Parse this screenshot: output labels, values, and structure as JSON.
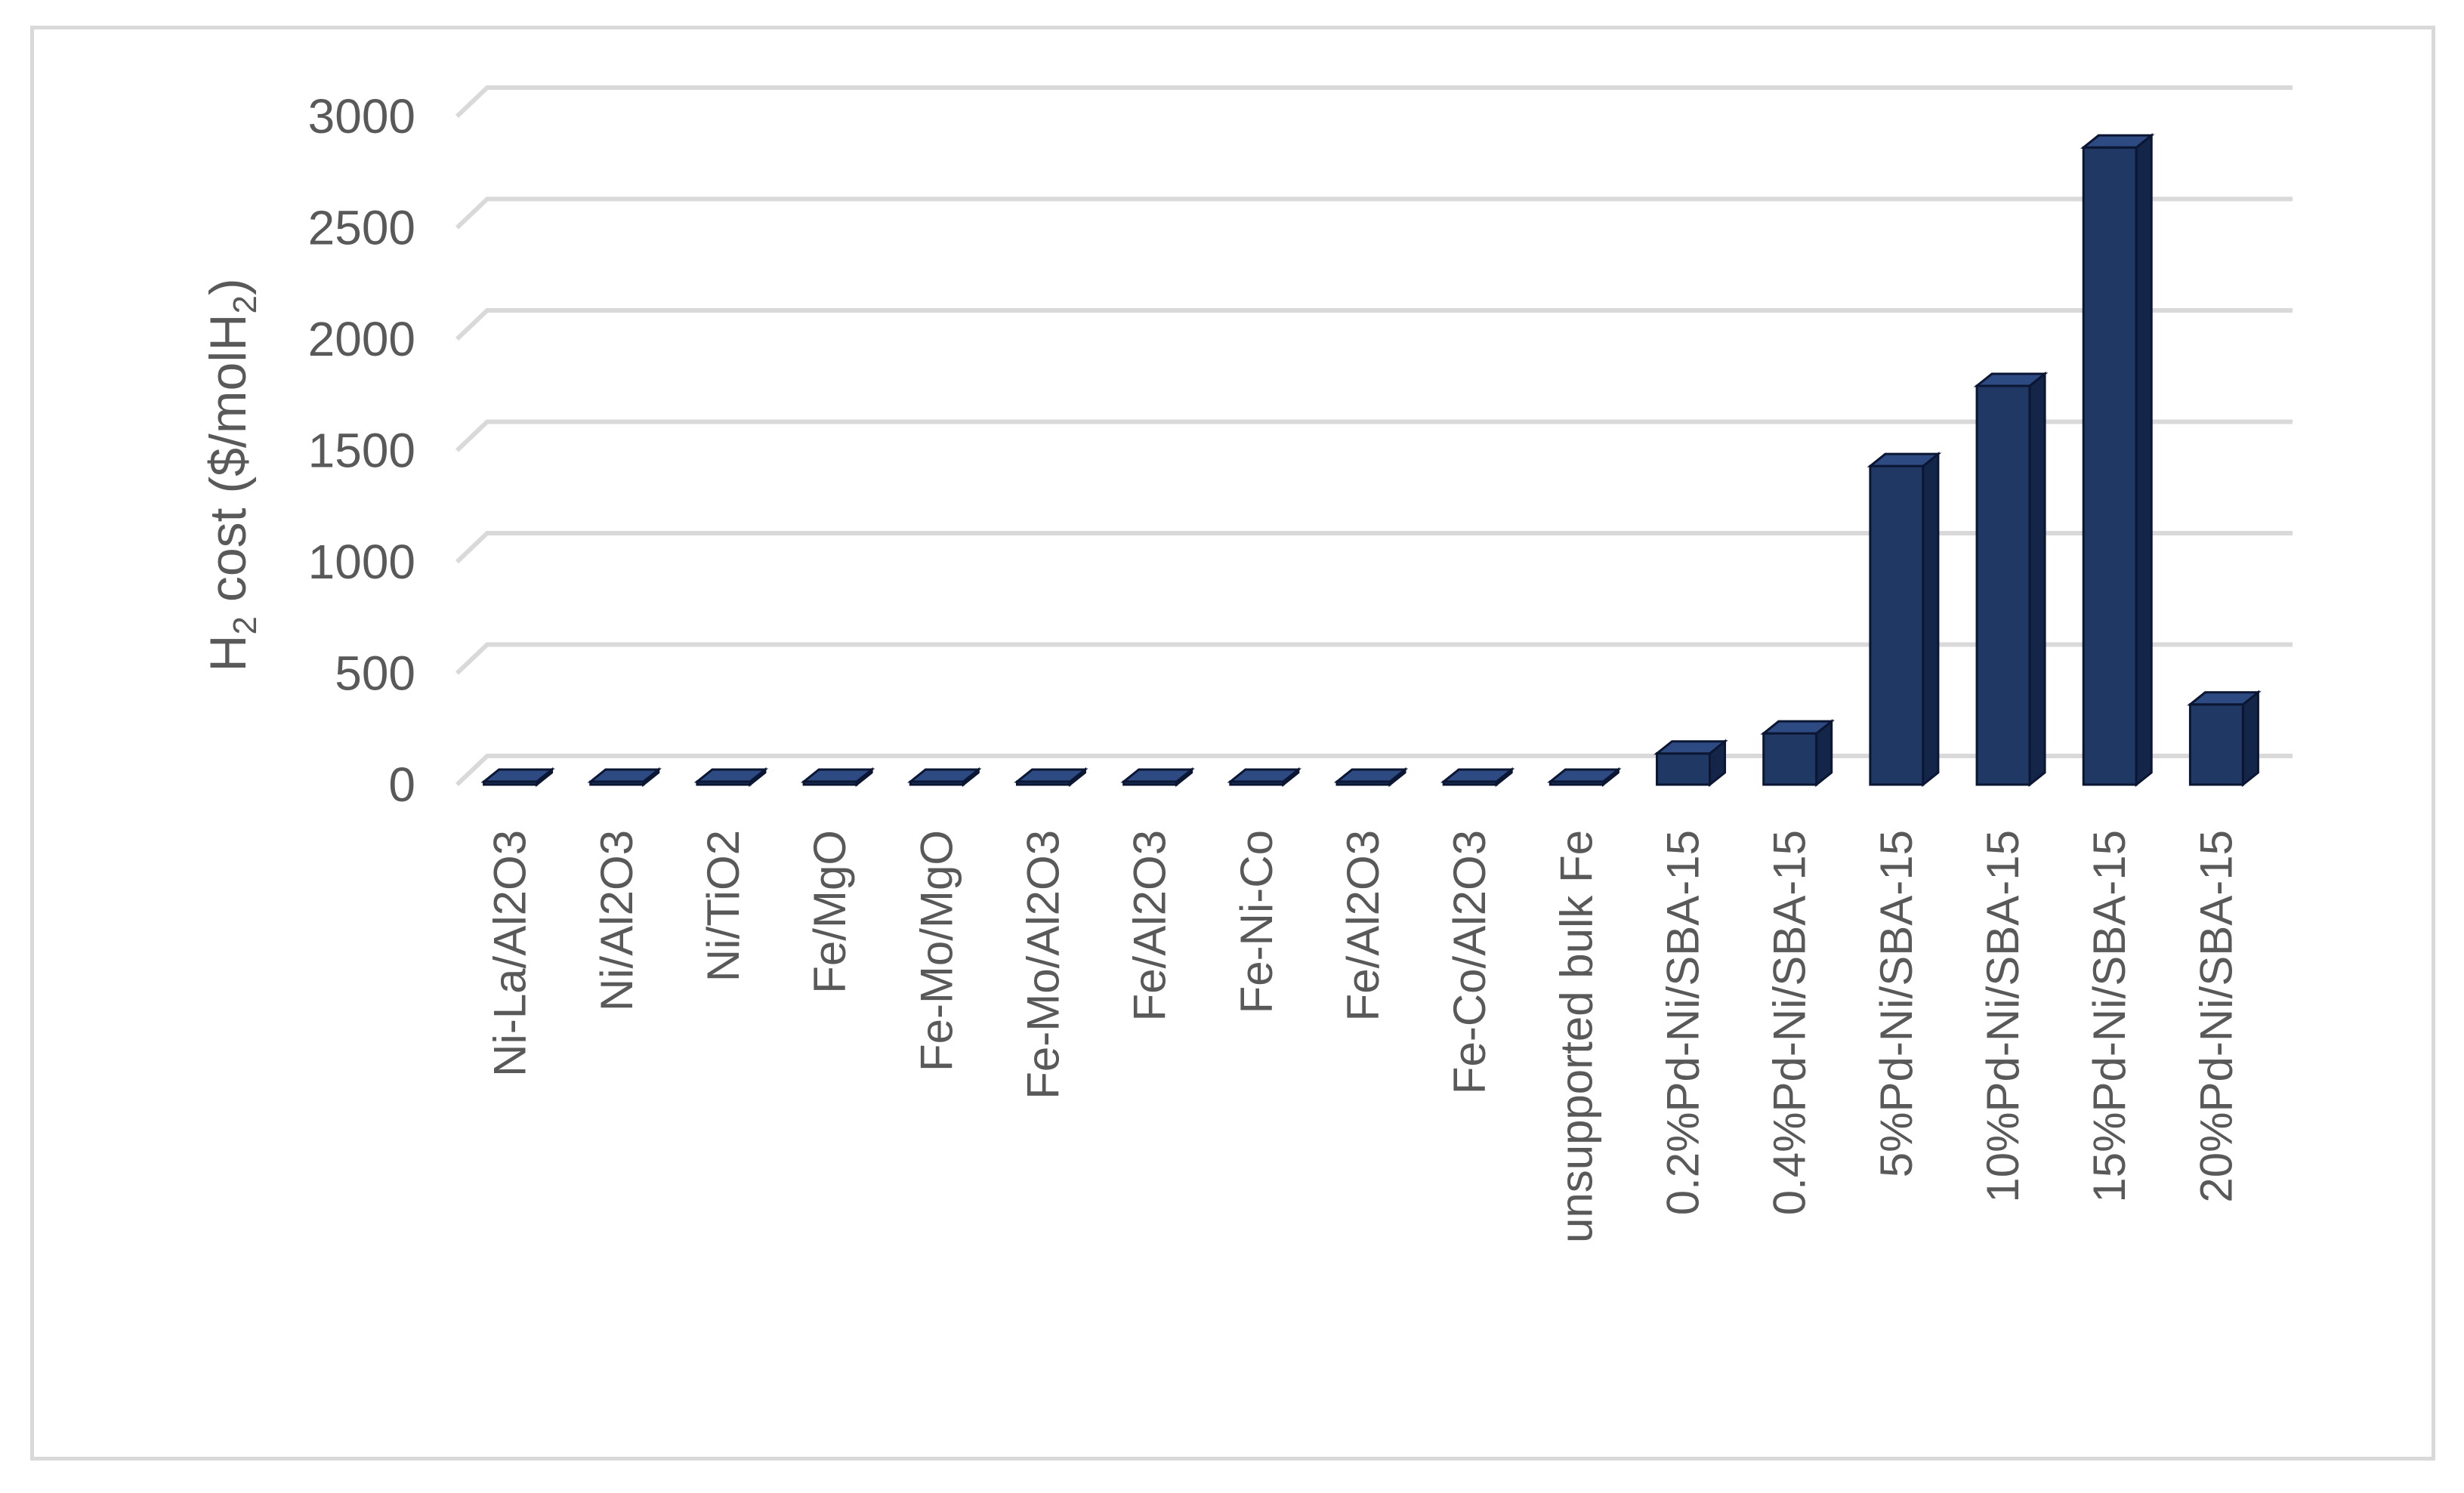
{
  "chart_data": {
    "type": "bar",
    "title": "",
    "xlabel": "",
    "ylabel": {
      "prefix": "H",
      "prefix_sub": "2",
      "middle": " cost ($/molH",
      "middle_sub": "2",
      "suffix": ")"
    },
    "ylim": [
      0,
      3000
    ],
    "yticks": [
      0,
      500,
      1000,
      1500,
      2000,
      2500,
      3000
    ],
    "grid": true,
    "legend": "none",
    "bar_style": "3d-column",
    "categories": [
      "Ni-La/Al2O3",
      "Ni/Al2O3",
      "Ni/TiO2",
      "Fe/MgO",
      "Fe-Mo/MgO",
      "Fe-Mo/Al2O3",
      "Fe/Al2O3",
      "Fe-Ni-Co",
      "Fe/Al2O3",
      "Fe-Co/Al2O3",
      "unsupported bulk Fe",
      "0.2%Pd-Ni/SBA-15",
      "0.4%Pd-Ni/SBA-15",
      "5%Pd-Ni/SBA-15",
      "10%Pd-Ni/SBA-15",
      "15%Pd-Ni/SBA-15",
      "20%Pd-Ni/SBA-15"
    ],
    "values": [
      2,
      2,
      2,
      2,
      2,
      2,
      2,
      2,
      2,
      2,
      2,
      140,
      230,
      1430,
      1790,
      2860,
      360
    ],
    "colors": {
      "bar_front": "#1f3864",
      "bar_side": "#14254a",
      "bar_top": "#2e4a82",
      "bar_edge": "#0b1633",
      "grid": "#d9d9d9",
      "text": "#595959"
    }
  }
}
